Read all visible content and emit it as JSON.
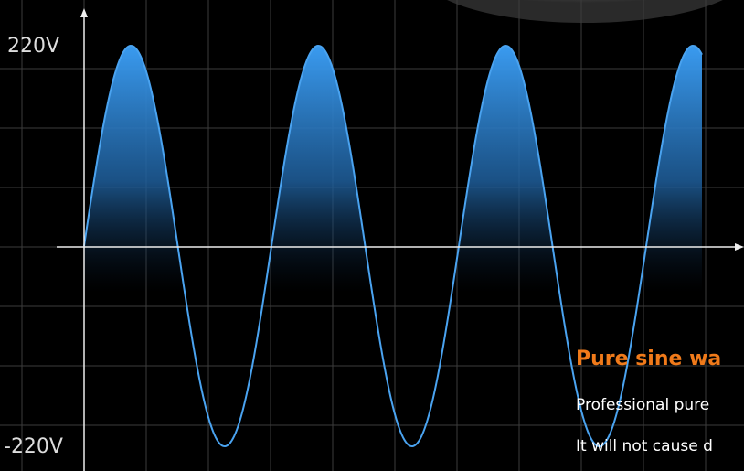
{
  "axis_labels": {
    "top": "220V",
    "bottom": "-220V"
  },
  "caption": {
    "title": "Pure sine wa",
    "lines": [
      "Professional pure",
      "It will not cause d"
    ]
  }
}
